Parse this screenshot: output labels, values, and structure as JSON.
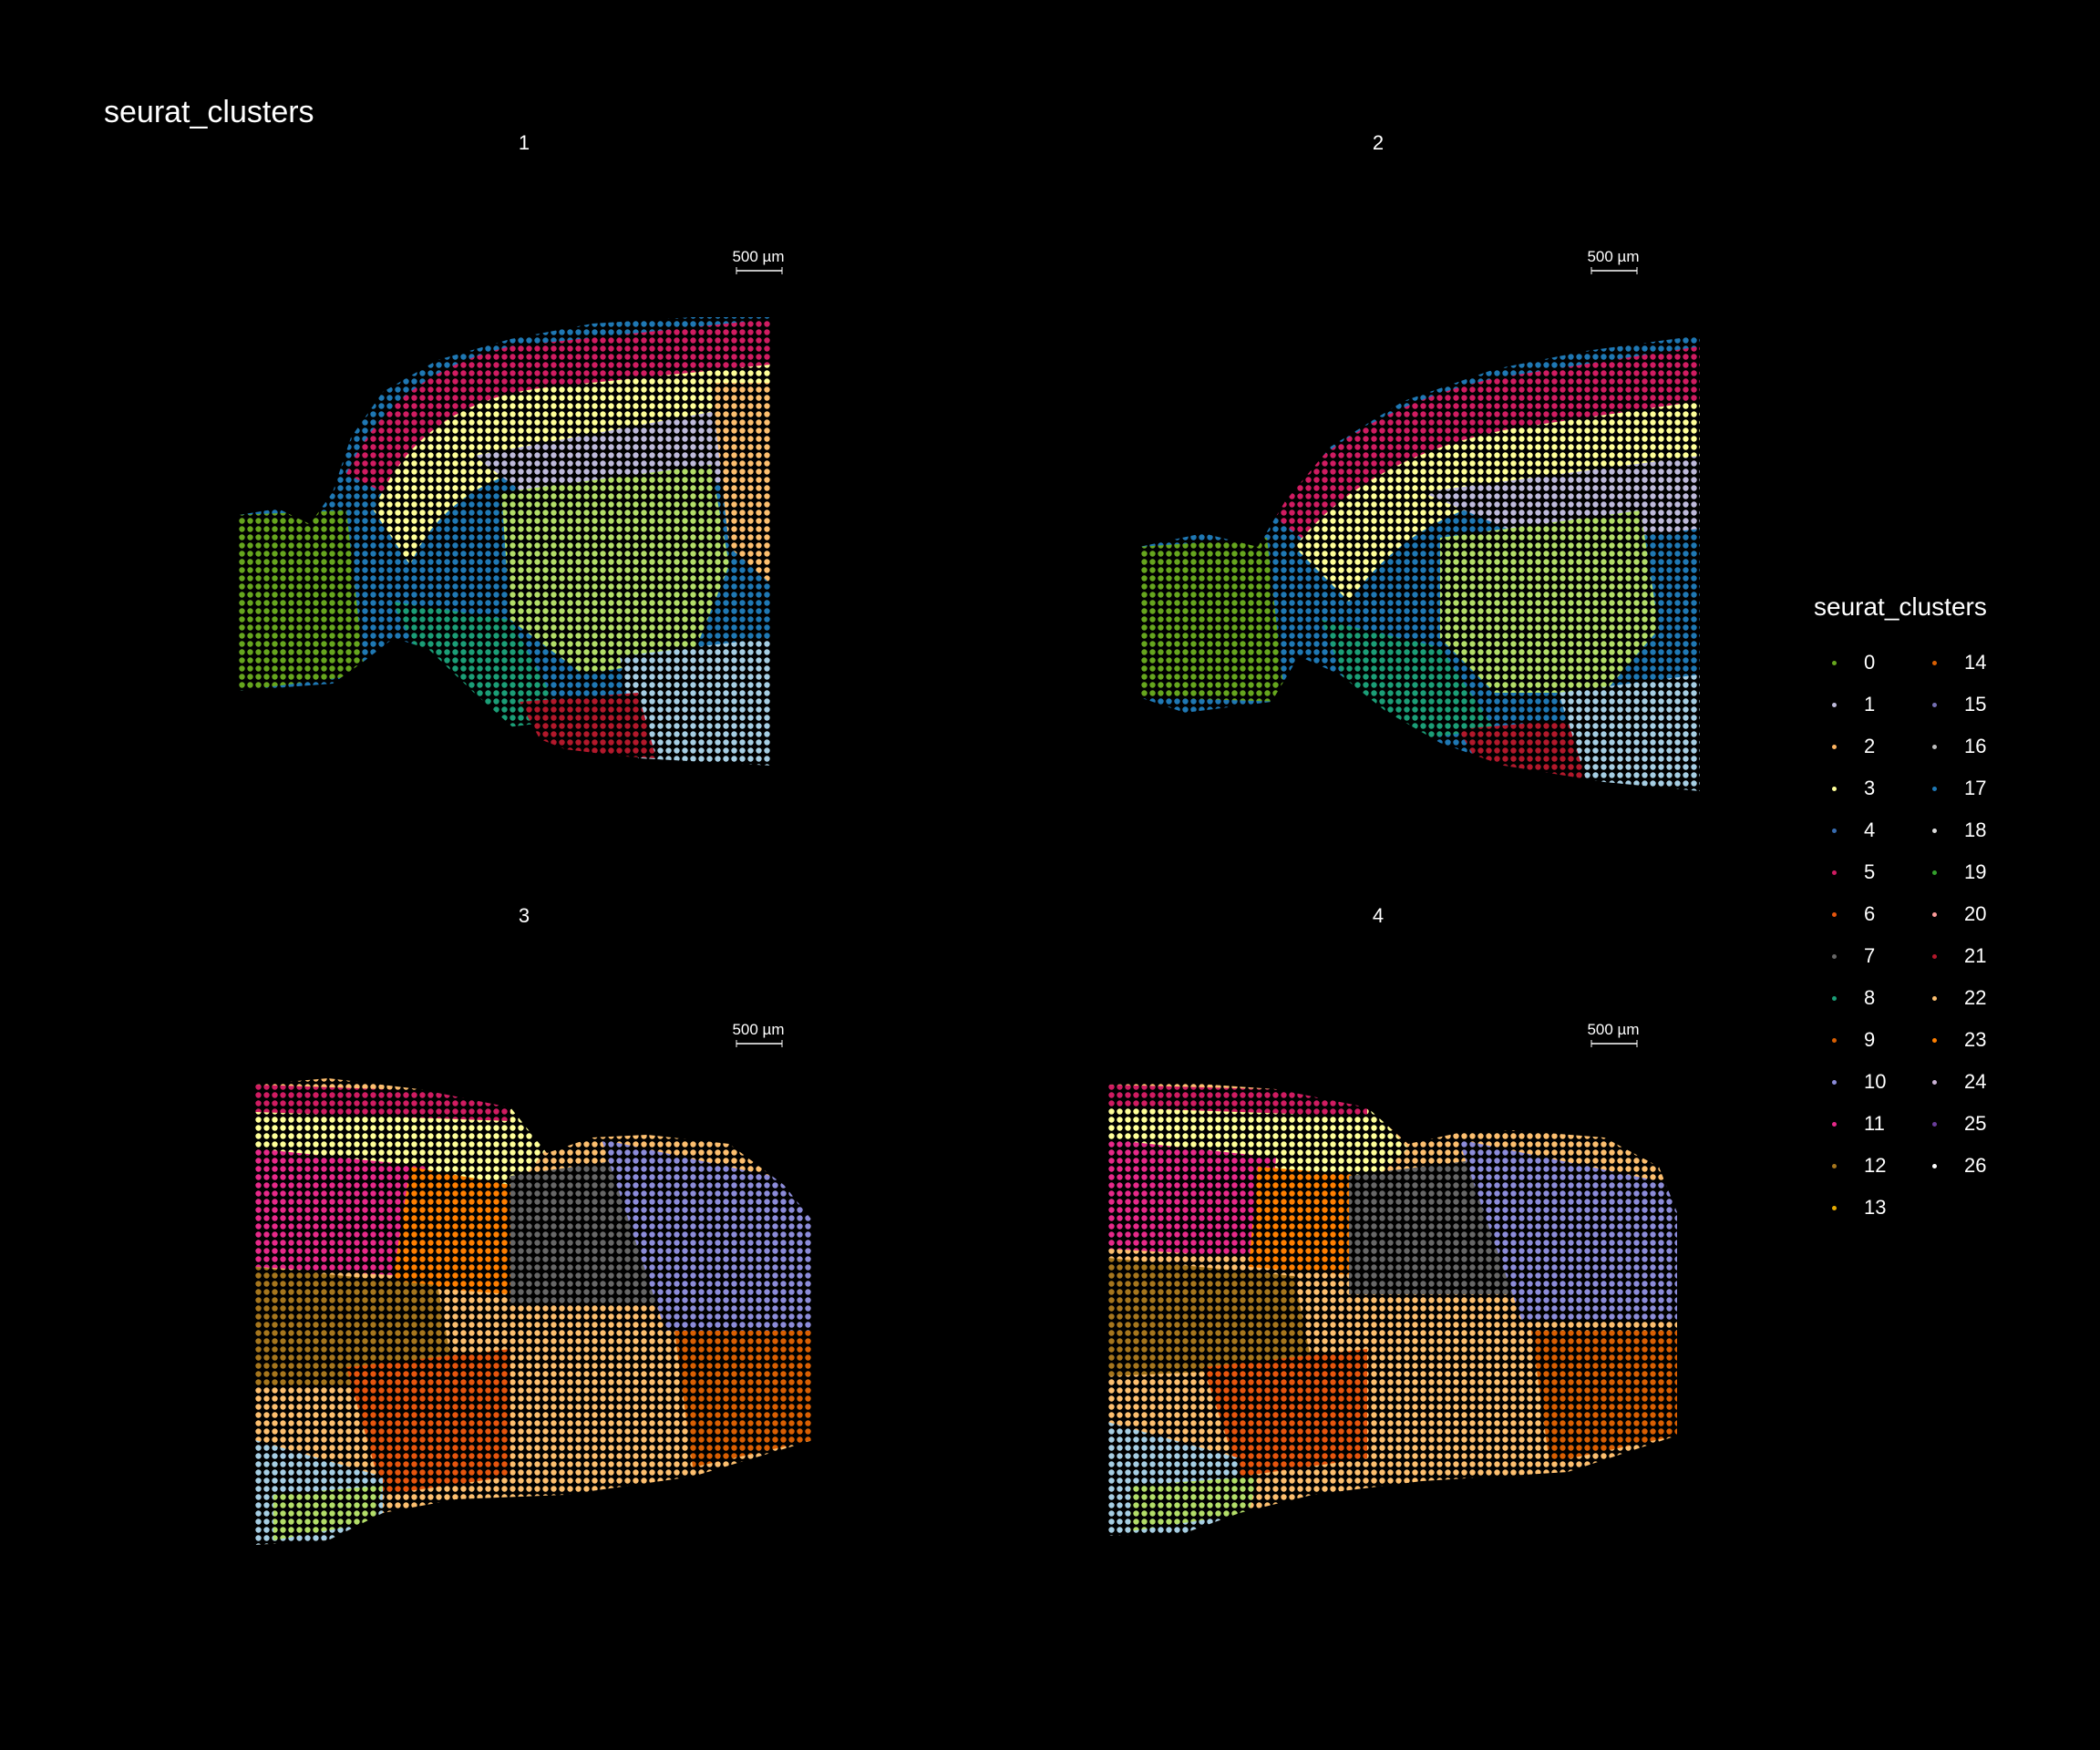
{
  "title": "seurat_clusters",
  "legend": {
    "title": "seurat_clusters",
    "items": [
      {
        "label": "0",
        "color": "#66a61e"
      },
      {
        "label": "1",
        "color": "#bebada"
      },
      {
        "label": "2",
        "color": "#fdb462"
      },
      {
        "label": "3",
        "color": "#ffff99"
      },
      {
        "label": "4",
        "color": "#386cb0"
      },
      {
        "label": "5",
        "color": "#d01c62"
      },
      {
        "label": "6",
        "color": "#e6550d"
      },
      {
        "label": "7",
        "color": "#666666"
      },
      {
        "label": "8",
        "color": "#1b9e77"
      },
      {
        "label": "9",
        "color": "#d95f02"
      },
      {
        "label": "10",
        "color": "#8c8cd9"
      },
      {
        "label": "11",
        "color": "#e7298a"
      },
      {
        "label": "12",
        "color": "#a6761d"
      },
      {
        "label": "13",
        "color": "#e6ab02"
      },
      {
        "label": "14",
        "color": "#d95f02"
      },
      {
        "label": "15",
        "color": "#7570b3"
      },
      {
        "label": "16",
        "color": "#bdbdbd"
      },
      {
        "label": "17",
        "color": "#1f78b4"
      },
      {
        "label": "18",
        "color": "#dddddd"
      },
      {
        "label": "19",
        "color": "#33a02c"
      },
      {
        "label": "20",
        "color": "#fb9a99"
      },
      {
        "label": "21",
        "color": "#b2182b"
      },
      {
        "label": "22",
        "color": "#fdbf6f"
      },
      {
        "label": "23",
        "color": "#ff7f00"
      },
      {
        "label": "24",
        "color": "#cab2d6"
      },
      {
        "label": "25",
        "color": "#6a3d9a"
      },
      {
        "label": "26",
        "color": "#ffffff"
      }
    ]
  },
  "panels": [
    {
      "label": "1",
      "scalebar": "500 µm"
    },
    {
      "label": "2",
      "scalebar": "500 µm"
    },
    {
      "label": "3",
      "scalebar": "500 µm"
    },
    {
      "label": "4",
      "scalebar": "500 µm"
    }
  ]
}
